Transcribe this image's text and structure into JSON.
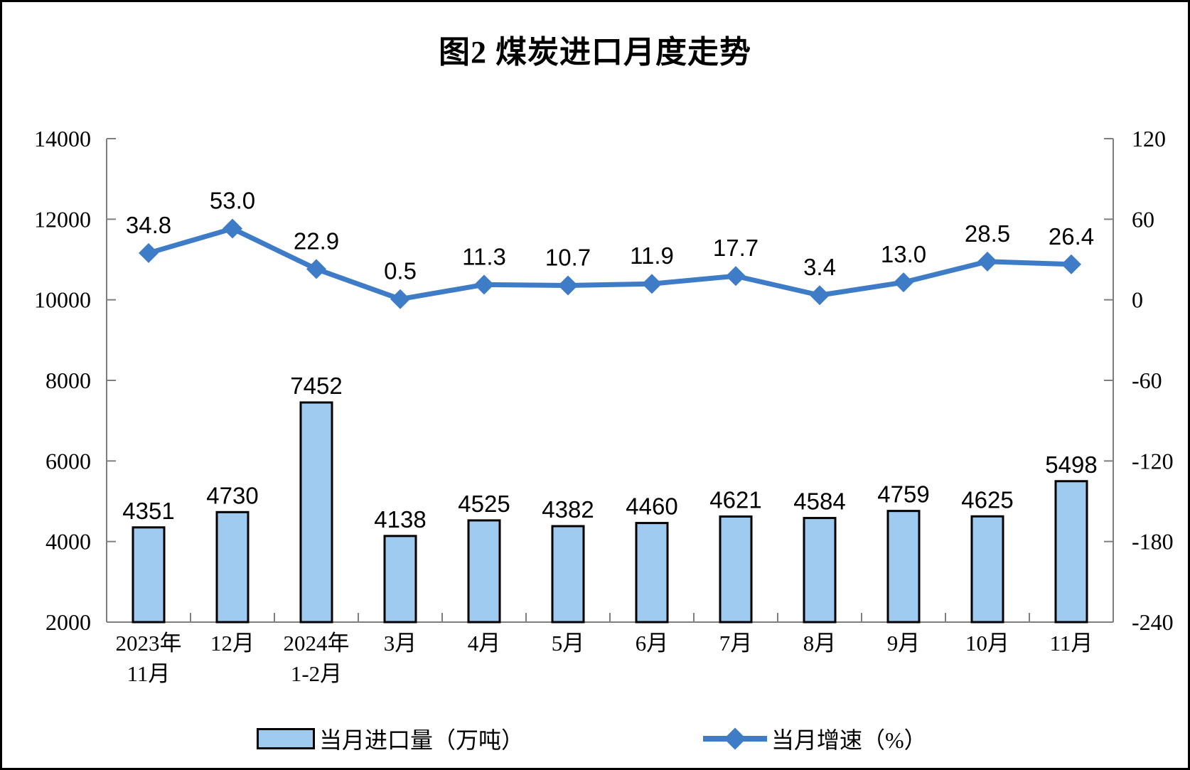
{
  "frame": {
    "border_color": "#000000",
    "background": "#FFFFFF"
  },
  "chart_data": {
    "type": "bar+line",
    "title": "图2 煤炭进口月度走势",
    "categories": [
      "2023年\n11月",
      "12月",
      "2024年\n1-2月",
      "3月",
      "4月",
      "5月",
      "6月",
      "7月",
      "8月",
      "9月",
      "10月",
      "11月"
    ],
    "series": [
      {
        "name": "当月进口量（万吨）",
        "type": "bar",
        "axis": "left",
        "values": [
          4351,
          4730,
          7452,
          4138,
          4525,
          4382,
          4460,
          4621,
          4584,
          4759,
          4625,
          5498
        ],
        "label_decimals": 0
      },
      {
        "name": "当月增速（%）",
        "type": "line",
        "axis": "right",
        "values": [
          34.8,
          53.0,
          22.9,
          0.5,
          11.3,
          10.7,
          11.9,
          17.7,
          3.4,
          13.0,
          28.5,
          26.4
        ],
        "label_decimals": 1
      }
    ],
    "left_axis": {
      "min": 2000,
      "max": 14000,
      "ticks": [
        14000,
        12000,
        10000,
        8000,
        6000,
        4000,
        2000
      ]
    },
    "right_axis": {
      "min": -240,
      "max": 120,
      "ticks": [
        120,
        60,
        0,
        -60,
        -120,
        -180,
        -240
      ]
    },
    "grid": false,
    "legend_position": "bottom",
    "colors": {
      "bar_fill": "#9FCBF1",
      "bar_border": "#000000",
      "line": "#3E7CC7",
      "axis": "#7F7F7F",
      "text": "#000000"
    }
  },
  "legend": {
    "items": [
      {
        "label": "当月进口量（万吨）",
        "swatch": "bar"
      },
      {
        "label": "当月增速（%）",
        "swatch": "line-diamond"
      }
    ]
  }
}
